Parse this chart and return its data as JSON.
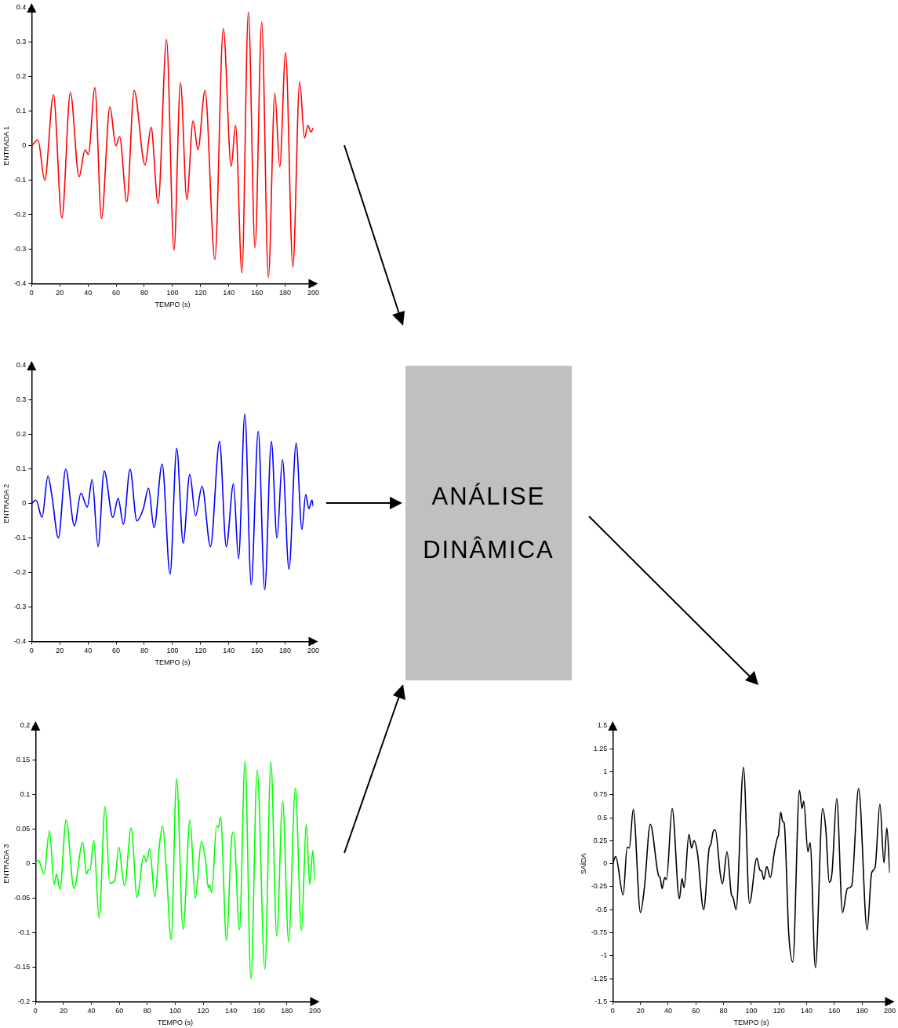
{
  "chart_data": [
    {
      "type": "line",
      "xlabel": "TEMPO (s)",
      "ylabel": "ENTRADA 1",
      "xlim": [
        0,
        200
      ],
      "ylim": [
        -0.4,
        0.4
      ],
      "xticks": [
        0,
        20,
        40,
        60,
        80,
        100,
        120,
        140,
        160,
        180,
        200
      ],
      "yticks": [
        -0.4,
        -0.3,
        -0.2,
        -0.1,
        0,
        0.1,
        0.2,
        0.3,
        0.4
      ],
      "grid": false,
      "legend": false,
      "x": [
        0,
        4.5,
        9.3,
        15.5,
        21.5,
        27.5,
        33.7,
        37.9,
        40.3,
        44.9,
        49.6,
        55.6,
        59.8,
        62.5,
        67.6,
        72.8,
        80.5,
        84.8,
        89.8,
        95.8,
        101.1,
        105.7,
        110.2,
        114.6,
        118.1,
        123.1,
        130.1,
        136.1,
        141.7,
        144.8,
        149.3,
        153.9,
        158.6,
        163.4,
        168.1,
        172.7,
        176.2,
        180.3,
        185.5,
        190.3,
        193.8,
        196.1,
        198.3,
        200
      ],
      "series": [
        {
          "color": "#ff0000",
          "values": [
            0,
            0.017,
            -0.1,
            0.148,
            -0.21,
            0.154,
            -0.09,
            -0.012,
            -0.025,
            0.169,
            -0.211,
            0.113,
            0,
            0.026,
            -0.163,
            0.16,
            -0.056,
            0.053,
            -0.168,
            0.308,
            -0.303,
            0.183,
            -0.156,
            0.072,
            -0.011,
            0.16,
            -0.33,
            0.34,
            -0.06,
            0.06,
            -0.369,
            0.388,
            -0.296,
            0.359,
            -0.382,
            0.152,
            -0.061,
            0.27,
            -0.352,
            0.185,
            0.022,
            0.059,
            0.04,
            0.052
          ]
        }
      ]
    },
    {
      "type": "line",
      "xlabel": "TEMPO (s)",
      "ylabel": "ENTRADA 2",
      "xlim": [
        0,
        200
      ],
      "ylim": [
        -0.4,
        0.4
      ],
      "xticks": [
        0,
        20,
        40,
        60,
        80,
        100,
        120,
        140,
        160,
        180,
        200
      ],
      "yticks": [
        -0.4,
        -0.3,
        -0.2,
        -0.1,
        0,
        0.1,
        0.2,
        0.3,
        0.4
      ],
      "grid": false,
      "legend": false,
      "x": [
        0,
        3.1,
        7.4,
        11.6,
        14.5,
        19,
        24.2,
        30.4,
        35,
        39.5,
        43,
        47.2,
        51.5,
        57.7,
        61.4,
        65.2,
        69.9,
        74.7,
        79.3,
        83,
        86.9,
        92.7,
        98.3,
        103,
        107.6,
        112.3,
        116.4,
        121,
        127,
        133.4,
        138.2,
        143.3,
        146.9,
        151.4,
        155.9,
        160.9,
        165.5,
        170.2,
        174.2,
        178.1,
        182.7,
        187.8,
        191.9,
        194.6,
        196.9,
        199,
        200
      ],
      "series": [
        {
          "color": "#0000ff",
          "values": [
            0,
            0.01,
            -0.04,
            0.08,
            0.02,
            -0.1,
            0.1,
            -0.065,
            0.03,
            -0.01,
            0.07,
            -0.125,
            0.095,
            -0.04,
            0.015,
            -0.06,
            0.1,
            -0.05,
            -0.015,
            0.045,
            -0.07,
            0.115,
            -0.205,
            0.16,
            -0.115,
            0.085,
            -0.035,
            0.05,
            -0.125,
            0.18,
            -0.125,
            0.057,
            -0.16,
            0.26,
            -0.235,
            0.21,
            -0.25,
            0.18,
            -0.1,
            0.127,
            -0.19,
            0.175,
            -0.075,
            0.026,
            -0.015,
            0.01,
            -0.008
          ]
        }
      ]
    },
    {
      "type": "other",
      "title": "ANÁLISE DINÂMICA"
    },
    {
      "type": "line",
      "xlabel": "TEMPO (s)",
      "ylabel": "ENTRADA 3",
      "xlim": [
        0,
        200
      ],
      "ylim": [
        -0.2,
        0.2
      ],
      "xticks": [
        0,
        20,
        40,
        60,
        80,
        100,
        120,
        140,
        160,
        180,
        200
      ],
      "yticks": [
        -0.2,
        -0.15,
        -0.1,
        -0.05,
        0,
        0.05,
        0.1,
        0.15,
        0.2
      ],
      "grid": false,
      "legend": false,
      "x": [
        0,
        2.1,
        6,
        10,
        13.3,
        15,
        17.5,
        21.9,
        27.5,
        33.8,
        36.5,
        37.7,
        39,
        41.7,
        45.5,
        49.8,
        53.1,
        56.7,
        59.6,
        63.7,
        68.5,
        72.7,
        77.5,
        79.4,
        81.7,
        85.4,
        88.8,
        91,
        93.8,
        97.1,
        101,
        105.6,
        110.6,
        114.4,
        118.7,
        121.7,
        123.7,
        124.6,
        126.2,
        129.6,
        131,
        132.5,
        136.7,
        140.6,
        141.9,
        146,
        150,
        154.2,
        158.7,
        164.2,
        168.5,
        172.7,
        176.9,
        181.2,
        186,
        190.4,
        193.8,
        196.3,
        198.5,
        200
      ],
      "series": [
        {
          "color": "#00ff00",
          "values": [
            0,
            0.005,
            -0.015,
            0.048,
            -0.03,
            -0.015,
            -0.037,
            0.064,
            -0.036,
            0.031,
            -0.015,
            -0.009,
            -0.009,
            0.034,
            -0.079,
            0.083,
            -0.028,
            -0.025,
            0.024,
            -0.032,
            0.052,
            -0.049,
            0.012,
            0.003,
            0.022,
            -0.048,
            0.029,
            0.055,
            -0.013,
            -0.11,
            0.124,
            -0.095,
            0.064,
            -0.05,
            0.032,
            0.005,
            -0.035,
            -0.031,
            -0.042,
            0.055,
            0.053,
            0.068,
            -0.111,
            0.041,
            0.046,
            -0.096,
            0.149,
            -0.168,
            0.136,
            -0.153,
            0.148,
            -0.105,
            0.091,
            -0.113,
            0.11,
            -0.097,
            0.057,
            -0.03,
            0.019,
            -0.025
          ]
        }
      ]
    },
    {
      "type": "line",
      "xlabel": "TEMPO (s)",
      "ylabel": "SAÍDA",
      "xlim": [
        0,
        200
      ],
      "ylim": [
        -1.5,
        1.5
      ],
      "xticks": [
        0,
        20,
        40,
        60,
        80,
        100,
        120,
        140,
        160,
        180,
        200
      ],
      "yticks": [
        -1.5,
        -1.25,
        -1,
        -0.75,
        -0.5,
        -0.25,
        0,
        0.25,
        0.5,
        0.75,
        1,
        1.25,
        1.5
      ],
      "grid": false,
      "legend": false,
      "x": [
        0,
        2.1,
        7.5,
        10.4,
        11.9,
        14.8,
        20,
        22.9,
        27.1,
        33.1,
        34.2,
        35.6,
        37.5,
        38.8,
        42.9,
        48.1,
        50,
        51.5,
        55,
        56.9,
        58.7,
        61.2,
        65.6,
        69.6,
        70.8,
        72.5,
        74,
        77.7,
        79.2,
        82.5,
        85.6,
        86.9,
        89,
        94.4,
        98.7,
        104,
        106.3,
        107.5,
        109,
        111.2,
        113.8,
        116.5,
        118.8,
        119.6,
        121.3,
        122.7,
        123.8,
        127.1,
        130,
        134.8,
        136.7,
        137.9,
        140.9,
        142.5,
        146.3,
        151.5,
        153.8,
        156.3,
        158.3,
        161.7,
        165.9,
        169.4,
        172.5,
        177.5,
        183.7,
        186.9,
        189.4,
        192.9,
        195.8,
        197.9,
        200
      ],
      "series": [
        {
          "color": "#000000",
          "values": [
            0,
            0.08,
            -0.34,
            0.18,
            0.17,
            0.59,
            -0.53,
            -0.25,
            0.43,
            -0.13,
            -0.15,
            -0.27,
            -0.15,
            -0.17,
            0.6,
            -0.38,
            -0.16,
            -0.26,
            0.32,
            0.17,
            0.25,
            0.11,
            -0.5,
            0.17,
            0.21,
            0.35,
            0.37,
            -0.12,
            -0.22,
            0.13,
            -0.33,
            -0.37,
            -0.5,
            1.05,
            -0.43,
            0.06,
            -0.07,
            -0.08,
            -0.17,
            -0.03,
            -0.15,
            0.11,
            0.28,
            0.31,
            0.56,
            0.46,
            0.44,
            -0.77,
            -1.07,
            0.8,
            0.6,
            0.68,
            0.13,
            0.23,
            -1.13,
            0.6,
            0.38,
            -0.2,
            -0.1,
            0.71,
            -0.53,
            -0.27,
            -0.24,
            0.82,
            -0.72,
            -0.1,
            -0.04,
            0.65,
            0.01,
            0.39,
            -0.1
          ]
        }
      ]
    }
  ]
}
